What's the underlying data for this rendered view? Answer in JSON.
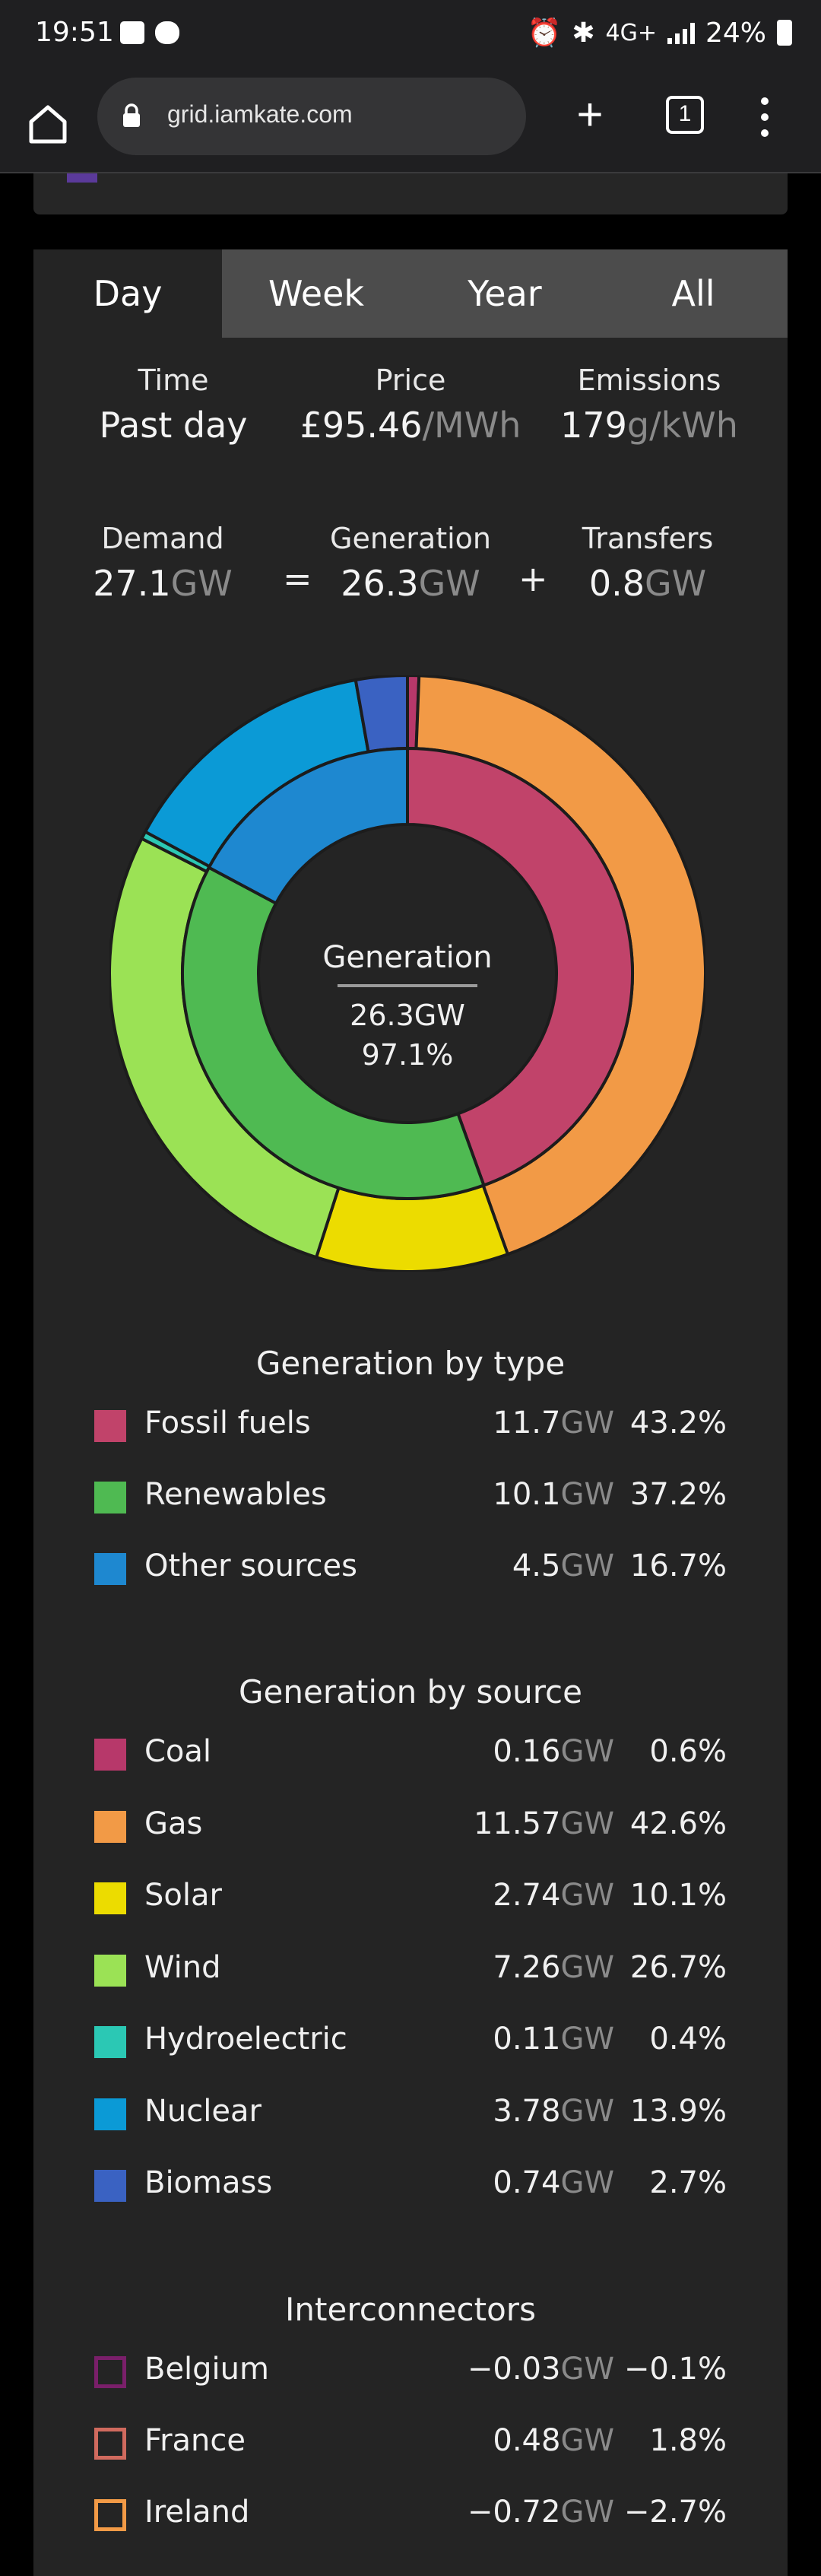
{
  "status_bar": {
    "time": "19:51",
    "network": "4G+",
    "battery": "24%"
  },
  "browser": {
    "url": "grid.iamkate.com",
    "tab_count": "1"
  },
  "tabs": [
    {
      "label": "Day",
      "active": true
    },
    {
      "label": "Week",
      "active": false
    },
    {
      "label": "Year",
      "active": false
    },
    {
      "label": "All",
      "active": false
    }
  ],
  "stats": {
    "time": {
      "label": "Time",
      "value": "Past day"
    },
    "price": {
      "label": "Price",
      "value": "£95.46",
      "unit": "/MWh"
    },
    "emissions": {
      "label": "Emissions",
      "value": "179",
      "unit": "g/kWh"
    }
  },
  "balance": {
    "demand": {
      "label": "Demand",
      "value": "27.1",
      "unit": "GW"
    },
    "generation": {
      "label": "Generation",
      "value": "26.3",
      "unit": "GW"
    },
    "transfers": {
      "label": "Transfers",
      "value": "0.8",
      "unit": "GW"
    },
    "equals": "=",
    "plus": "+"
  },
  "donut_center": {
    "label": "Generation",
    "value": "26.3GW",
    "percent": "97.1%"
  },
  "generation_by_type": {
    "title": "Generation by type",
    "items": [
      {
        "label": "Fossil fuels",
        "value": "11.7",
        "unit": "GW",
        "percent": "43.2%",
        "color": "#c1436a"
      },
      {
        "label": "Renewables",
        "value": "10.1",
        "unit": "GW",
        "percent": "37.2%",
        "color": "#4fba52"
      },
      {
        "label": "Other sources",
        "value": "4.5",
        "unit": "GW",
        "percent": "16.7%",
        "color": "#1e88d0"
      }
    ]
  },
  "generation_by_source": {
    "title": "Generation by source",
    "items": [
      {
        "label": "Coal",
        "value": "0.16",
        "unit": "GW",
        "percent": "0.6%",
        "color": "#b7386a"
      },
      {
        "label": "Gas",
        "value": "11.57",
        "unit": "GW",
        "percent": "42.6%",
        "color": "#f29a46"
      },
      {
        "label": "Solar",
        "value": "2.74",
        "unit": "GW",
        "percent": "10.1%",
        "color": "#ecdc00"
      },
      {
        "label": "Wind",
        "value": "7.26",
        "unit": "GW",
        "percent": "26.7%",
        "color": "#9be255"
      },
      {
        "label": "Hydroelectric",
        "value": "0.11",
        "unit": "GW",
        "percent": "0.4%",
        "color": "#2bc8b4"
      },
      {
        "label": "Nuclear",
        "value": "3.78",
        "unit": "GW",
        "percent": "13.9%",
        "color": "#0b9ad6"
      },
      {
        "label": "Biomass",
        "value": "0.74",
        "unit": "GW",
        "percent": "2.7%",
        "color": "#3a62c2"
      }
    ]
  },
  "interconnectors": {
    "title": "Interconnectors",
    "items": [
      {
        "label": "Belgium",
        "value": "−0.03",
        "unit": "GW",
        "percent": "−0.1%",
        "color": "#7a1f6a"
      },
      {
        "label": "France",
        "value": "0.48",
        "unit": "GW",
        "percent": "1.8%",
        "color": "#d06a5e"
      },
      {
        "label": "Ireland",
        "value": "−0.72",
        "unit": "GW",
        "percent": "−2.7%",
        "color": "#f29a46"
      }
    ]
  }
}
